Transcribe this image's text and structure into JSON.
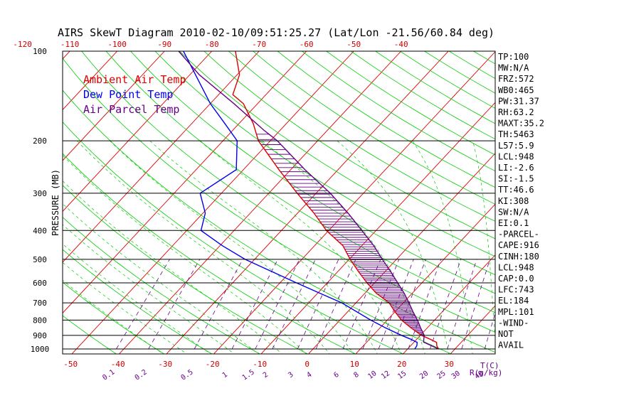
{
  "chart_data": {
    "type": "line",
    "title": "AIRS SkewT Diagram 2010-02-10/09:51:25.27 (Lat/Lon -21.56/60.84 deg)",
    "ylabel": "PRESSURE (MB)",
    "xlabel": "T(C)",
    "mixing_ratio_unit": "R(g/kg)",
    "y_scale": "log",
    "ylim": [
      1050,
      100
    ],
    "pressure_ticks": [
      100,
      200,
      300,
      400,
      500,
      600,
      700,
      800,
      900,
      1000
    ],
    "bottom_temp_ticks": [
      -50,
      -40,
      -30,
      -20,
      -10,
      0,
      10,
      20,
      30
    ],
    "top_temp_ticks": [
      -120,
      -110,
      -100,
      -90,
      -80,
      -70,
      -60,
      -50,
      -40
    ],
    "mixing_ratio_ticks": [
      "0.1",
      "0.2",
      "0.5",
      "1",
      "1.5",
      "2",
      "3",
      "4",
      "6",
      "8",
      "10",
      "12",
      "15",
      "20",
      "25",
      "30",
      "40"
    ],
    "legend": [
      {
        "label": "Ambient Air Temp",
        "color": "#dd0000"
      },
      {
        "label": "Dew Point Temp",
        "color": "#0000ee"
      },
      {
        "label": "Air Parcel Temp",
        "color": "#660088"
      }
    ],
    "series": [
      {
        "name": "Ambient Air Temp",
        "color": "#dd0000",
        "points": [
          [
            1000,
            26.5
          ],
          [
            975,
            25.5
          ],
          [
            950,
            24.8
          ],
          [
            925,
            22.6
          ],
          [
            900,
            20.2
          ],
          [
            850,
            16.6
          ],
          [
            800,
            13.0
          ],
          [
            750,
            10.0
          ],
          [
            700,
            7.0
          ],
          [
            650,
            2.4
          ],
          [
            600,
            -1.6
          ],
          [
            550,
            -5.6
          ],
          [
            500,
            -9.8
          ],
          [
            450,
            -14.0
          ],
          [
            400,
            -20.5
          ],
          [
            350,
            -26.5
          ],
          [
            300,
            -34.0
          ],
          [
            250,
            -42.5
          ],
          [
            200,
            -52.5
          ],
          [
            175,
            -57.0
          ],
          [
            150,
            -63.0
          ],
          [
            140,
            -67.0
          ],
          [
            120,
            -69.5
          ],
          [
            100,
            -75.0
          ]
        ]
      },
      {
        "name": "Dew Point Temp",
        "color": "#0000ee",
        "points": [
          [
            1000,
            21.5
          ],
          [
            975,
            21.3
          ],
          [
            950,
            20.7
          ],
          [
            925,
            18.5
          ],
          [
            900,
            16.0
          ],
          [
            850,
            11.2
          ],
          [
            800,
            6.5
          ],
          [
            700,
            -3.0
          ],
          [
            650,
            -9.5
          ],
          [
            600,
            -16.5
          ],
          [
            500,
            -32.0
          ],
          [
            450,
            -39.5
          ],
          [
            400,
            -47.0
          ],
          [
            350,
            -49.5
          ],
          [
            300,
            -54.5
          ],
          [
            250,
            -51.5
          ],
          [
            200,
            -57.0
          ],
          [
            175,
            -63.0
          ],
          [
            150,
            -70.0
          ],
          [
            100,
            -86.0
          ]
        ]
      },
      {
        "name": "Air Parcel Temp",
        "color": "#660088",
        "points": [
          [
            1000,
            26.5
          ],
          [
            948,
            22.0
          ],
          [
            900,
            20.8
          ],
          [
            850,
            18.6
          ],
          [
            800,
            16.4
          ],
          [
            750,
            13.8
          ],
          [
            700,
            11.2
          ],
          [
            650,
            8.3
          ],
          [
            600,
            4.9
          ],
          [
            550,
            1.2
          ],
          [
            500,
            -3.0
          ],
          [
            450,
            -7.5
          ],
          [
            400,
            -13.0
          ],
          [
            350,
            -19.3
          ],
          [
            300,
            -27.0
          ],
          [
            250,
            -37.0
          ],
          [
            200,
            -48.5
          ],
          [
            184,
            -53.5
          ],
          [
            150,
            -65.0
          ],
          [
            120,
            -78.0
          ],
          [
            100,
            -87.0
          ]
        ]
      }
    ],
    "stats": [
      "TP:100",
      "MW:N/A",
      "FRZ:572",
      "WB0:465",
      "PW:31.37",
      "RH:63.2",
      "MAXT:35.2",
      "TH:5463",
      "L57:5.9",
      "LCL:948",
      "LI:-2.6",
      "SI:-1.5",
      "TT:46.6",
      "KI:308",
      "SW:N/A",
      "EI:0.1",
      "-PARCEL-",
      "CAPE:916",
      "CINH:180",
      "LCL:948",
      "CAP:0.0",
      "LFC:743",
      "EL:184",
      "MPL:101",
      "-WIND-",
      "NOT",
      "AVAIL"
    ]
  },
  "colors": {
    "isotherm": "#dd0000",
    "dry_adiabat": "#00cc00",
    "moist_adiabat": "#00cc00",
    "mixing_ratio": "#660088",
    "frame": "#000000",
    "axis_text": "#cc0000"
  }
}
